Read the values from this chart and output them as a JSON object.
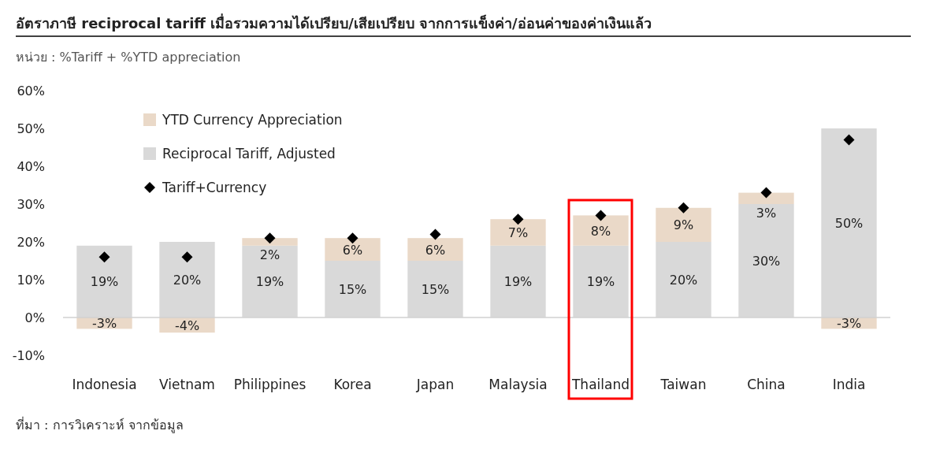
{
  "chart_data": {
    "type": "bar",
    "title": "อัตราภาษี reciprocal tariff เมื่อรวมความได้เปรียบ/เสียเปรียบ  จากการแข็งค่า/อ่อนค่าของค่าเงินแล้ว",
    "subtitle": "หน่วย : %Tariff + %YTD appreciation",
    "categories": [
      "Indonesia",
      "Vietnam",
      "Philippines",
      "Korea",
      "Japan",
      "Malaysia",
      "Thailand",
      "Taiwan",
      "China",
      "India"
    ],
    "stacked": true,
    "series": [
      {
        "name": "Reciprocal Tariff, Adjusted",
        "color": "#d9d9d9",
        "values": [
          19,
          20,
          19,
          15,
          15,
          19,
          19,
          20,
          30,
          50
        ],
        "value_labels": [
          "19%",
          "20%",
          "19%",
          "15%",
          "15%",
          "19%",
          "19%",
          "20%",
          "30%",
          "50%"
        ]
      },
      {
        "name": "YTD Currency Appreciation",
        "color": "#ead9c8",
        "values": [
          -3,
          -4,
          2,
          6,
          6,
          7,
          8,
          9,
          3,
          -3
        ],
        "value_labels": [
          "-3%",
          "-4%",
          "2%",
          "6%",
          "6%",
          "7%",
          "8%",
          "9%",
          "3%",
          "-3%"
        ]
      },
      {
        "name": "Tariff+Currency",
        "type": "scatter",
        "marker": "diamond",
        "color": "#000000",
        "values": [
          16,
          16,
          21,
          21,
          22,
          26,
          27,
          29,
          33,
          47
        ]
      }
    ],
    "legend": "top left",
    "ylim": [
      -10,
      60
    ],
    "yticks": [
      {
        "value": -10,
        "label": "-10%"
      },
      {
        "value": 0,
        "label": "0%"
      },
      {
        "value": 10,
        "label": "10%"
      },
      {
        "value": 20,
        "label": "20%"
      },
      {
        "value": 30,
        "label": "30%"
      },
      {
        "value": 40,
        "label": "40%"
      },
      {
        "value": 50,
        "label": "50%"
      },
      {
        "value": 60,
        "label": "60%"
      }
    ],
    "annotations": [
      "ที่มา : การวิเคราะห์ จากข้อมูล"
    ]
  }
}
